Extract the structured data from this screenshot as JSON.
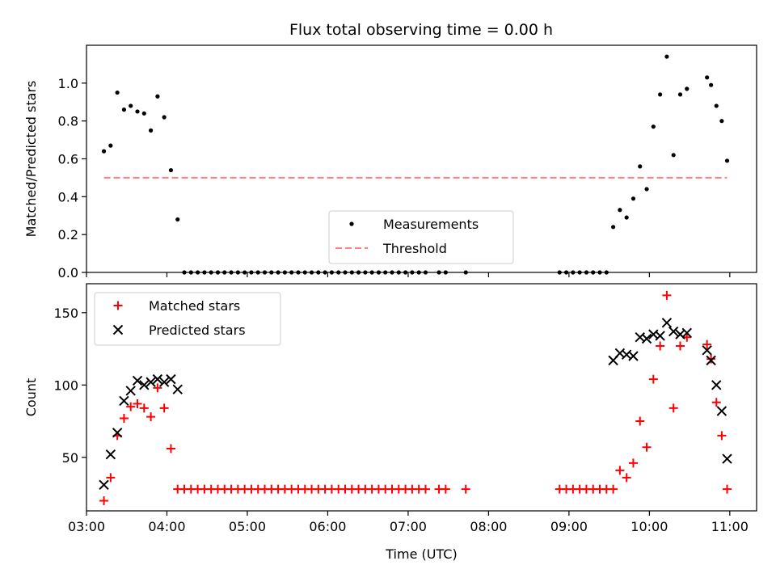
{
  "chart_data": [
    {
      "type": "scatter",
      "title": "Flux total observing time = 0.00 h",
      "xlabel": "",
      "ylabel": "Matched/Predicted stars",
      "xlim": [
        "03:00",
        "11:20"
      ],
      "ylim": [
        0,
        1.2
      ],
      "xticks": [
        "03:00",
        "04:00",
        "05:00",
        "06:00",
        "07:00",
        "08:00",
        "09:00",
        "10:00",
        "11:00"
      ],
      "yticks": [
        "0.0",
        "0.2",
        "0.4",
        "0.6",
        "0.8",
        "1.0"
      ],
      "grid": false,
      "legend": "bottom-center",
      "series": [
        {
          "name": "Measurements",
          "marker": "dot",
          "color": "#000000",
          "points": [
            [
              "03:13",
              0.64
            ],
            [
              "03:18",
              0.67
            ],
            [
              "03:23",
              0.95
            ],
            [
              "03:28",
              0.86
            ],
            [
              "03:33",
              0.88
            ],
            [
              "03:38",
              0.85
            ],
            [
              "03:43",
              0.84
            ],
            [
              "03:48",
              0.75
            ],
            [
              "03:53",
              0.93
            ],
            [
              "03:58",
              0.82
            ],
            [
              "04:03",
              0.54
            ],
            [
              "04:08",
              0.28
            ],
            [
              "04:13",
              0.0
            ],
            [
              "04:18",
              0.0
            ],
            [
              "04:23",
              0.0
            ],
            [
              "04:28",
              0.0
            ],
            [
              "04:33",
              0.0
            ],
            [
              "04:38",
              0.0
            ],
            [
              "04:43",
              0.0
            ],
            [
              "04:48",
              0.0
            ],
            [
              "04:53",
              0.0
            ],
            [
              "04:58",
              0.0
            ],
            [
              "05:03",
              0.0
            ],
            [
              "05:08",
              0.0
            ],
            [
              "05:13",
              0.0
            ],
            [
              "05:18",
              0.0
            ],
            [
              "05:23",
              0.0
            ],
            [
              "05:28",
              0.0
            ],
            [
              "05:33",
              0.0
            ],
            [
              "05:38",
              0.0
            ],
            [
              "05:43",
              0.0
            ],
            [
              "05:48",
              0.0
            ],
            [
              "05:53",
              0.0
            ],
            [
              "05:58",
              0.0
            ],
            [
              "06:03",
              0.0
            ],
            [
              "06:08",
              0.0
            ],
            [
              "06:13",
              0.0
            ],
            [
              "06:18",
              0.0
            ],
            [
              "06:23",
              0.0
            ],
            [
              "06:28",
              0.0
            ],
            [
              "06:33",
              0.0
            ],
            [
              "06:38",
              0.0
            ],
            [
              "06:43",
              0.0
            ],
            [
              "06:48",
              0.0
            ],
            [
              "06:53",
              0.0
            ],
            [
              "06:58",
              0.0
            ],
            [
              "07:03",
              0.0
            ],
            [
              "07:08",
              0.0
            ],
            [
              "07:13",
              0.0
            ],
            [
              "07:23",
              0.0
            ],
            [
              "07:28",
              0.0
            ],
            [
              "07:43",
              0.0
            ],
            [
              "08:53",
              0.0
            ],
            [
              "08:58",
              0.0
            ],
            [
              "09:03",
              0.0
            ],
            [
              "09:08",
              0.0
            ],
            [
              "09:13",
              0.0
            ],
            [
              "09:18",
              0.0
            ],
            [
              "09:23",
              0.0
            ],
            [
              "09:28",
              0.0
            ],
            [
              "09:33",
              0.24
            ],
            [
              "09:38",
              0.33
            ],
            [
              "09:43",
              0.29
            ],
            [
              "09:48",
              0.39
            ],
            [
              "09:53",
              0.56
            ],
            [
              "09:58",
              0.44
            ],
            [
              "10:03",
              0.77
            ],
            [
              "10:08",
              0.94
            ],
            [
              "10:13",
              1.14
            ],
            [
              "10:18",
              0.62
            ],
            [
              "10:23",
              0.94
            ],
            [
              "10:28",
              0.97
            ],
            [
              "10:43",
              1.03
            ],
            [
              "10:46",
              0.99
            ],
            [
              "10:50",
              0.88
            ],
            [
              "10:54",
              0.8
            ],
            [
              "10:58",
              0.59
            ]
          ]
        },
        {
          "name": "Threshold",
          "line": "dashed",
          "color": "#ff7f7f",
          "points": [
            [
              "03:13",
              0.5
            ],
            [
              "10:58",
              0.5
            ]
          ]
        }
      ]
    },
    {
      "type": "scatter",
      "title": "",
      "xlabel": "Time (UTC)",
      "ylabel": "Count",
      "xlim": [
        "03:00",
        "11:20"
      ],
      "ylim": [
        13,
        170
      ],
      "xticks": [
        "03:00",
        "04:00",
        "05:00",
        "06:00",
        "07:00",
        "08:00",
        "09:00",
        "10:00",
        "11:00"
      ],
      "yticks": [
        "50",
        "100",
        "150"
      ],
      "grid": false,
      "legend": "top-left",
      "series": [
        {
          "name": "Matched stars",
          "marker": "plus",
          "color": "#ff0000",
          "points": [
            [
              "03:13",
              20
            ],
            [
              "03:18",
              36
            ],
            [
              "03:23",
              65
            ],
            [
              "03:28",
              77
            ],
            [
              "03:33",
              85
            ],
            [
              "03:38",
              87
            ],
            [
              "03:43",
              84
            ],
            [
              "03:48",
              78
            ],
            [
              "03:53",
              98
            ],
            [
              "03:58",
              84
            ],
            [
              "04:03",
              56
            ],
            [
              "04:08",
              28
            ],
            [
              "04:13",
              28
            ],
            [
              "04:18",
              28
            ],
            [
              "04:23",
              28
            ],
            [
              "04:28",
              28
            ],
            [
              "04:33",
              28
            ],
            [
              "04:38",
              28
            ],
            [
              "04:43",
              28
            ],
            [
              "04:48",
              28
            ],
            [
              "04:53",
              28
            ],
            [
              "04:58",
              28
            ],
            [
              "05:03",
              28
            ],
            [
              "05:08",
              28
            ],
            [
              "05:13",
              28
            ],
            [
              "05:18",
              28
            ],
            [
              "05:23",
              28
            ],
            [
              "05:28",
              28
            ],
            [
              "05:33",
              28
            ],
            [
              "05:38",
              28
            ],
            [
              "05:43",
              28
            ],
            [
              "05:48",
              28
            ],
            [
              "05:53",
              28
            ],
            [
              "05:58",
              28
            ],
            [
              "06:03",
              28
            ],
            [
              "06:08",
              28
            ],
            [
              "06:13",
              28
            ],
            [
              "06:18",
              28
            ],
            [
              "06:23",
              28
            ],
            [
              "06:28",
              28
            ],
            [
              "06:33",
              28
            ],
            [
              "06:38",
              28
            ],
            [
              "06:43",
              28
            ],
            [
              "06:48",
              28
            ],
            [
              "06:53",
              28
            ],
            [
              "06:58",
              28
            ],
            [
              "07:03",
              28
            ],
            [
              "07:08",
              28
            ],
            [
              "07:13",
              28
            ],
            [
              "07:23",
              28
            ],
            [
              "07:28",
              28
            ],
            [
              "07:43",
              28
            ],
            [
              "08:53",
              28
            ],
            [
              "08:58",
              28
            ],
            [
              "09:03",
              28
            ],
            [
              "09:08",
              28
            ],
            [
              "09:13",
              28
            ],
            [
              "09:18",
              28
            ],
            [
              "09:23",
              28
            ],
            [
              "09:28",
              28
            ],
            [
              "09:33",
              28
            ],
            [
              "09:38",
              41
            ],
            [
              "09:43",
              36
            ],
            [
              "09:48",
              46
            ],
            [
              "09:53",
              75
            ],
            [
              "09:58",
              57
            ],
            [
              "10:03",
              104
            ],
            [
              "10:08",
              127
            ],
            [
              "10:13",
              162
            ],
            [
              "10:18",
              84
            ],
            [
              "10:23",
              127
            ],
            [
              "10:28",
              133
            ],
            [
              "10:43",
              128
            ],
            [
              "10:46",
              118
            ],
            [
              "10:50",
              88
            ],
            [
              "10:54",
              65
            ],
            [
              "10:58",
              28
            ]
          ]
        },
        {
          "name": "Predicted stars",
          "marker": "x",
          "color": "#000000",
          "points": [
            [
              "03:13",
              31
            ],
            [
              "03:18",
              52
            ],
            [
              "03:23",
              67
            ],
            [
              "03:28",
              89
            ],
            [
              "03:33",
              96
            ],
            [
              "03:38",
              103
            ],
            [
              "03:43",
              100
            ],
            [
              "03:48",
              102
            ],
            [
              "03:53",
              104
            ],
            [
              "03:58",
              102
            ],
            [
              "04:03",
              104
            ],
            [
              "04:08",
              97
            ],
            [
              "09:33",
              117
            ],
            [
              "09:38",
              122
            ],
            [
              "09:43",
              121
            ],
            [
              "09:48",
              120
            ],
            [
              "09:53",
              133
            ],
            [
              "09:58",
              132
            ],
            [
              "10:03",
              135
            ],
            [
              "10:08",
              134
            ],
            [
              "10:13",
              143
            ],
            [
              "10:18",
              137
            ],
            [
              "10:23",
              135
            ],
            [
              "10:28",
              136
            ],
            [
              "10:43",
              124
            ],
            [
              "10:46",
              117
            ],
            [
              "10:50",
              100
            ],
            [
              "10:54",
              82
            ],
            [
              "10:58",
              49
            ]
          ]
        }
      ]
    }
  ]
}
